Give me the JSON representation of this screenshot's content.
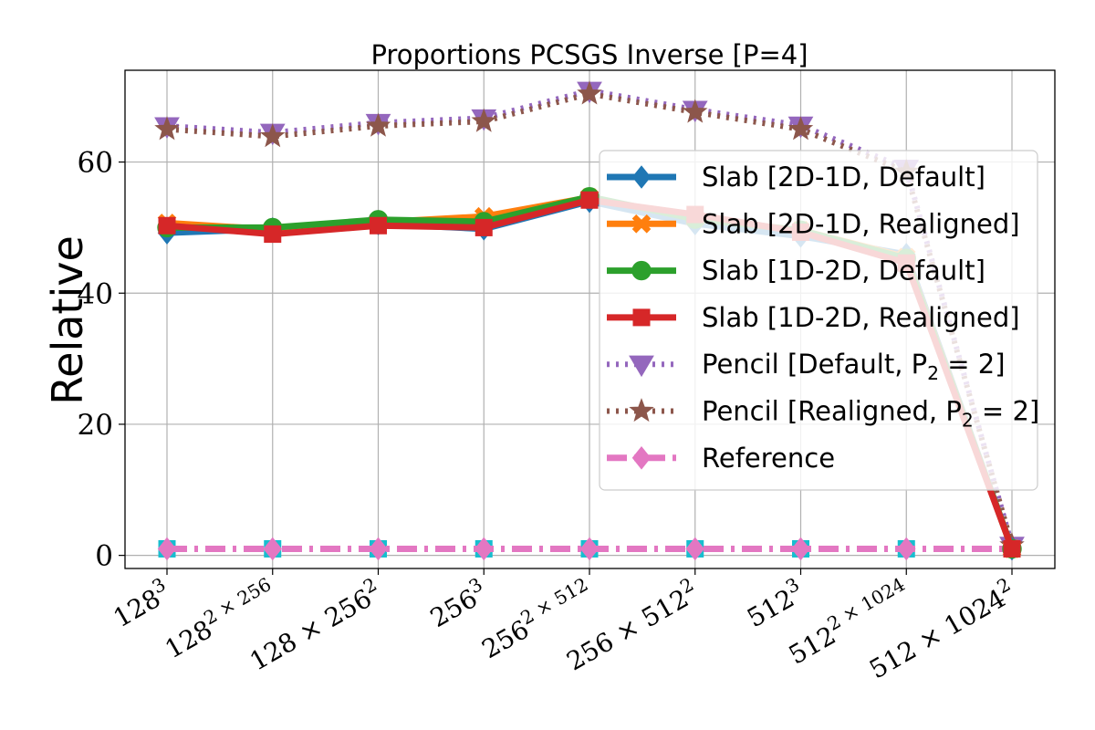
{
  "chart_data": {
    "type": "line",
    "title": "Proportions PCSGS Inverse [P=4]",
    "xlabel": "",
    "ylabel": "Relative",
    "categories": [
      "128^3",
      "128^2 × 256",
      "128 × 256^2",
      "256^3",
      "256^2 × 512",
      "256 × 512^2",
      "512^3",
      "512^2 × 1024",
      "512 × 1024^2"
    ],
    "ylim": [
      -2,
      74
    ],
    "yticks": [
      0,
      20,
      40,
      60
    ],
    "grid": true,
    "legend_position": "right",
    "series": [
      {
        "name": "Slab [2D-1D, Default]",
        "color": "#1f77b4",
        "marker": "diamond",
        "line": "solid",
        "values": [
          49.2,
          49.8,
          50.6,
          49.8,
          54.0,
          50.6,
          48.7,
          45.9,
          1.0
        ]
      },
      {
        "name": "Slab [2D-1D, Realigned]",
        "color": "#ff7f0e",
        "marker": "x",
        "line": "solid",
        "values": [
          50.7,
          49.7,
          50.8,
          51.7,
          54.6,
          51.4,
          49.6,
          45.5,
          1.0
        ]
      },
      {
        "name": "Slab [1D-2D, Default]",
        "color": "#2ca02c",
        "marker": "circle",
        "line": "solid",
        "values": [
          50.0,
          50.0,
          51.2,
          50.9,
          54.7,
          51.3,
          49.6,
          45.3,
          1.0
        ]
      },
      {
        "name": "Slab [1D-2D, Realigned]",
        "color": "#d62728",
        "marker": "square",
        "line": "solid",
        "values": [
          50.3,
          49.0,
          50.3,
          50.0,
          54.2,
          52.0,
          49.3,
          44.6,
          1.0
        ]
      },
      {
        "name": "Pencil [Default, P_2 = 2]",
        "color": "#9467bd",
        "marker": "triangle-down",
        "line": "dotted",
        "values": [
          65.5,
          64.5,
          66.0,
          66.7,
          70.9,
          68.0,
          65.6,
          59.0,
          1.5
        ]
      },
      {
        "name": "Pencil [Realigned, P_2 = 2]",
        "color": "#8c564b",
        "marker": "star",
        "line": "dotted",
        "values": [
          65.0,
          63.9,
          65.5,
          66.2,
          70.4,
          67.6,
          65.0,
          58.5,
          1.5
        ]
      },
      {
        "name": "Reference",
        "color": "#e377c2",
        "marker": "diamond",
        "line": "dashdot",
        "values": [
          1.0,
          1.0,
          1.0,
          1.0,
          1.0,
          1.0,
          1.0,
          1.0,
          1.0
        ]
      },
      {
        "name": "",
        "color": "#17becf",
        "marker": "square",
        "line": "dashdot",
        "values": [
          1.0,
          1.0,
          1.0,
          1.0,
          1.0,
          1.0,
          1.0,
          1.0,
          null
        ]
      }
    ]
  }
}
